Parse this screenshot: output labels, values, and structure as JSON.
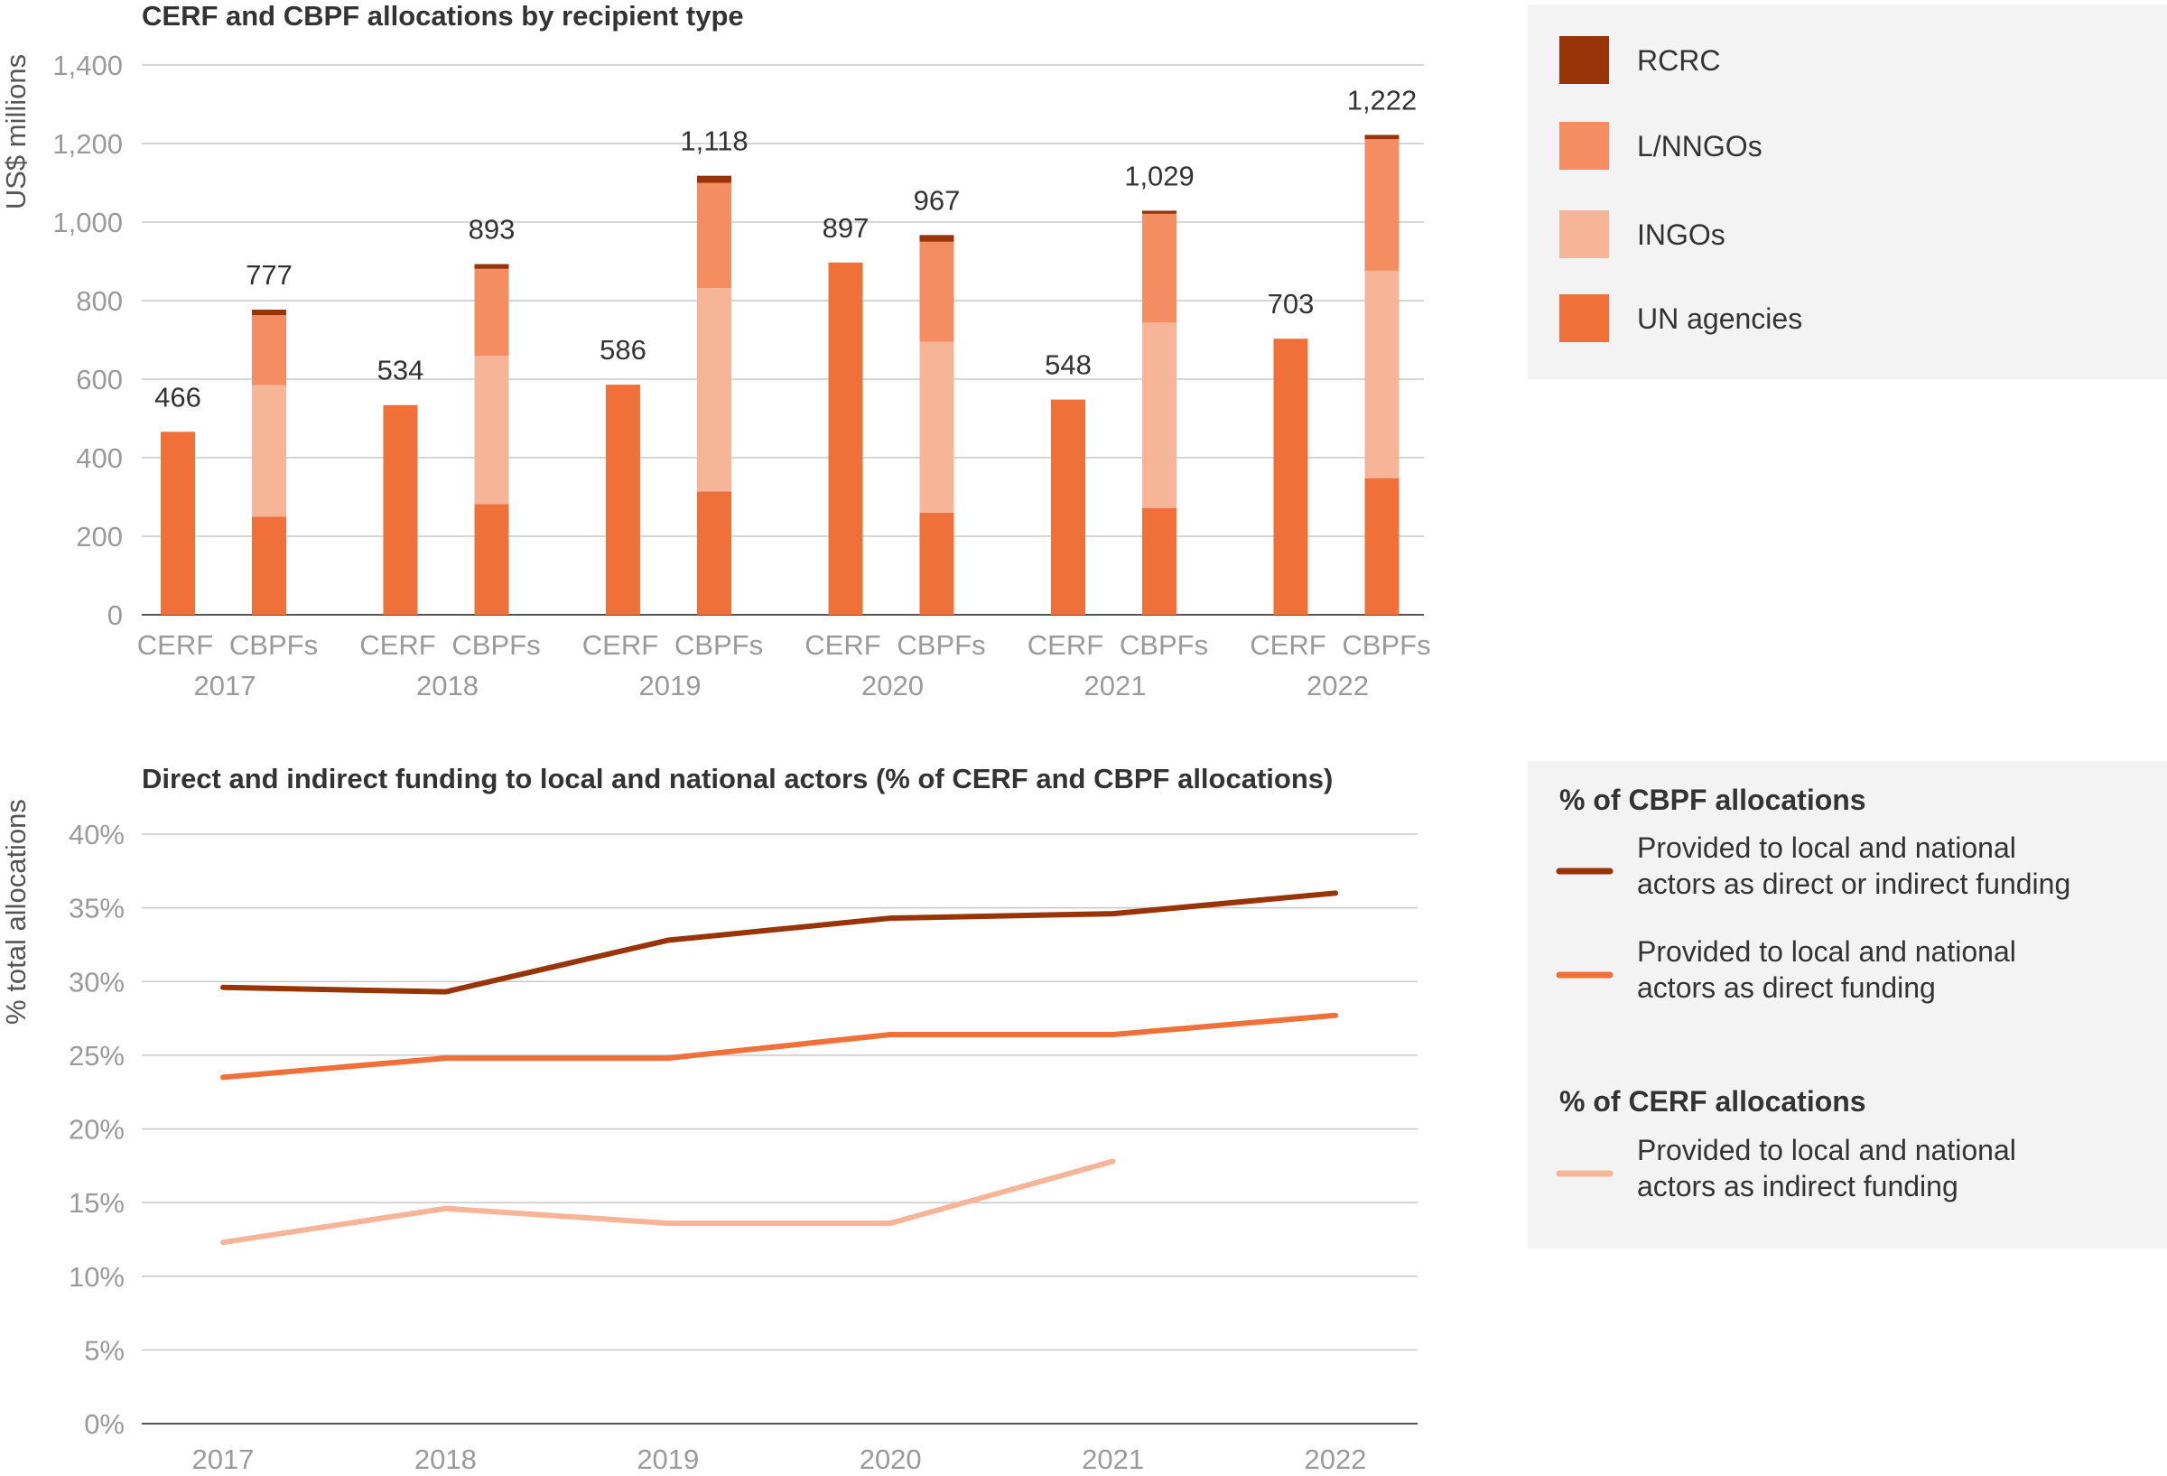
{
  "colors": {
    "un": "#f0703a",
    "ingo": "#f7b598",
    "lnngo": "#f48d62",
    "rcrc": "#983408",
    "grid": "#c8c8c8",
    "legend_bg": "#f3f3f3",
    "line_total": "#983408",
    "line_direct": "#f0703a",
    "line_cerf": "#f7b598"
  },
  "chart_data": [
    {
      "type": "bar",
      "stacked": true,
      "title": "CERF and CBPF allocations by recipient type",
      "ylabel": "US$ millions",
      "ylim": [
        0,
        1400
      ],
      "yticks": [
        "0",
        "200",
        "400",
        "600",
        "800",
        "1,000",
        "1,200",
        "1,400"
      ],
      "grid": true,
      "legend_position": "right",
      "years": [
        "2017",
        "2018",
        "2019",
        "2020",
        "2021",
        "2022"
      ],
      "fund_labels": [
        "CERF",
        "CBPFs"
      ],
      "series": [
        {
          "name": "UN agencies",
          "color_key": "un"
        },
        {
          "name": "INGOs",
          "color_key": "ingo"
        },
        {
          "name": "L/NNGOs",
          "color_key": "lnngo"
        },
        {
          "name": "RCRC",
          "color_key": "rcrc"
        }
      ],
      "legend_order": [
        "RCRC",
        "L/NNGOs",
        "INGOs",
        "UN agencies"
      ],
      "groups": [
        {
          "year": "2017",
          "bars": [
            {
              "fund": "CERF",
              "total_label": "466",
              "values": [
                466,
                0,
                0,
                0
              ]
            },
            {
              "fund": "CBPFs",
              "total_label": "777",
              "values": [
                250,
                335,
                178,
                14
              ]
            }
          ]
        },
        {
          "year": "2018",
          "bars": [
            {
              "fund": "CERF",
              "total_label": "534",
              "values": [
                534,
                0,
                0,
                0
              ]
            },
            {
              "fund": "CBPFs",
              "total_label": "893",
              "values": [
                282,
                377,
                222,
                12
              ]
            }
          ]
        },
        {
          "year": "2019",
          "bars": [
            {
              "fund": "CERF",
              "total_label": "586",
              "values": [
                586,
                0,
                0,
                0
              ]
            },
            {
              "fund": "CBPFs",
              "total_label": "1,118",
              "values": [
                314,
                518,
                268,
                18
              ]
            }
          ]
        },
        {
          "year": "2020",
          "bars": [
            {
              "fund": "CERF",
              "total_label": "897",
              "values": [
                897,
                0,
                0,
                0
              ]
            },
            {
              "fund": "CBPFs",
              "total_label": "967",
              "values": [
                260,
                435,
                255,
                17
              ]
            }
          ]
        },
        {
          "year": "2021",
          "bars": [
            {
              "fund": "CERF",
              "total_label": "548",
              "values": [
                548,
                0,
                0,
                0
              ]
            },
            {
              "fund": "CBPFs",
              "total_label": "1,029",
              "values": [
                272,
                472,
                277,
                8
              ]
            }
          ]
        },
        {
          "year": "2022",
          "bars": [
            {
              "fund": "CERF",
              "total_label": "703",
              "values": [
                703,
                0,
                0,
                0
              ]
            },
            {
              "fund": "CBPFs",
              "total_label": "1,222",
              "values": [
                348,
                528,
                335,
                11
              ]
            }
          ]
        }
      ]
    },
    {
      "type": "line",
      "title": "Direct and indirect funding to local and national actors (% of CERF and CBPF allocations)",
      "ylabel": "% total allocations",
      "ylim": [
        0,
        40
      ],
      "yticks": [
        "0%",
        "5%",
        "10%",
        "15%",
        "20%",
        "25%",
        "30%",
        "35%",
        "40%"
      ],
      "grid": true,
      "legend_position": "right",
      "x": [
        "2017",
        "2018",
        "2019",
        "2020",
        "2021",
        "2022"
      ],
      "legend_groups": [
        {
          "heading": "% of CBPF allocations",
          "items": [
            {
              "lines": [
                "Provided to local and national",
                "actors as direct or indirect funding"
              ],
              "color_key": "line_total"
            },
            {
              "lines": [
                "Provided to local and national",
                "actors as direct funding"
              ],
              "color_key": "line_direct"
            }
          ]
        },
        {
          "heading": "% of CERF allocations",
          "items": [
            {
              "lines": [
                "Provided to local and national",
                "actors as indirect funding"
              ],
              "color_key": "line_cerf"
            }
          ]
        }
      ],
      "series": [
        {
          "color_key": "line_total",
          "values": [
            29.6,
            29.3,
            32.8,
            34.3,
            34.6,
            36.0
          ]
        },
        {
          "color_key": "line_direct",
          "values": [
            23.5,
            24.8,
            24.8,
            26.4,
            26.4,
            27.7
          ]
        },
        {
          "color_key": "line_cerf",
          "values": [
            12.3,
            14.6,
            13.6,
            13.6,
            17.8,
            null
          ]
        }
      ]
    }
  ]
}
